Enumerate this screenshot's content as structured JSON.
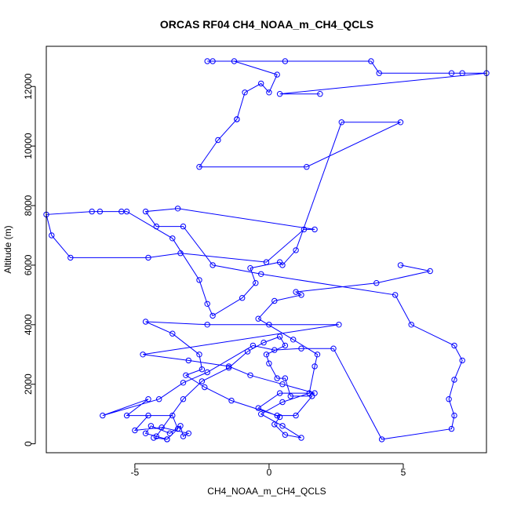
{
  "chart_data": {
    "type": "line",
    "title": "ORCAS RF04 CH4_NOAA_m_CH4_QCLS",
    "xlabel": "CH4_NOAA_m_CH4_QCLS",
    "ylabel": "Altitude (m)",
    "xlim": [
      -8.3,
      8.1
    ],
    "ylim": [
      -300,
      13350
    ],
    "x_ticks": [
      -5,
      0,
      5
    ],
    "x_tick_labels": [
      "-5",
      "0",
      "5"
    ],
    "y_ticks": [
      0,
      2000,
      4000,
      6000,
      8000,
      10000,
      12000
    ],
    "y_tick_labels": [
      "0",
      "2000",
      "4000",
      "6000",
      "8000",
      "10000",
      "12000"
    ],
    "grid": false,
    "marker": "open-circle",
    "color": "#0000ff",
    "series": [
      {
        "x": [
          -4.3,
          -3.8,
          -3.4,
          -3.6,
          -5.3,
          -4.5,
          -6.2,
          -4.1,
          -3.2,
          -2.3,
          -0.6,
          0.2,
          1.2,
          2.4,
          4.2,
          6.8,
          6.9,
          6.7,
          6.9,
          7.2,
          6.9,
          5.3,
          4.7,
          -0.3,
          -2.1,
          -3.2,
          -4.2,
          -4.6,
          -3.4,
          1.7,
          1.3,
          -0.1,
          -3.3,
          -4.5,
          -7.4,
          -8.1,
          -8.3,
          -6.6,
          -6.3,
          -5.5,
          -5.3,
          -3.6,
          -2.6,
          -2.3,
          -2.1,
          -1.0,
          -0.5,
          -0.7,
          0.4,
          0.5,
          1.0,
          2.7,
          4.9,
          1.4,
          -2.6,
          -1.9,
          -1.2,
          -1.2,
          -0.9,
          -0.3,
          0.0,
          0.3,
          -1.3,
          -2.1,
          -2.3,
          0.6,
          3.8,
          4.1,
          6.8,
          7.2,
          8.1,
          0.4,
          1.9
        ],
        "y": [
          200,
          150,
          500,
          950,
          950,
          1500,
          950,
          1500,
          2050,
          2400,
          3300,
          3150,
          3200,
          3200,
          150,
          500,
          950,
          1500,
          2150,
          2800,
          3300,
          4000,
          5000,
          5700,
          6000,
          7300,
          7300,
          7800,
          7900,
          7200,
          7200,
          6100,
          6400,
          6250,
          6250,
          7000,
          7700,
          7800,
          7800,
          7800,
          7800,
          6900,
          5500,
          4700,
          4300,
          4900,
          5400,
          5900,
          6100,
          6000,
          6500,
          10800,
          10800,
          9300,
          9300,
          10200,
          10900,
          10900,
          11800,
          12100,
          11800,
          12400,
          12850,
          12850,
          12850,
          12850,
          12850,
          12450,
          12450,
          12450,
          12450,
          11750,
          11750
        ]
      },
      {
        "x": [
          -4.5,
          -5.0,
          -4.0,
          -3.0,
          -3.2,
          -3.3,
          -3.7,
          -4.4,
          -4.6,
          -3.8,
          -4.2,
          -3.2,
          -2.5,
          -1.5,
          -0.8,
          -0.2,
          0.4,
          0.6,
          -0.1,
          0.0,
          0.3,
          0.6,
          0.8,
          1.6,
          1.0,
          0.3,
          -1.4,
          -2.4,
          -3.1,
          -2.5,
          -2.6,
          -3.6,
          -4.6,
          -2.3,
          0.0,
          2.6,
          -4.7,
          -3.0,
          -1.5,
          -0.7,
          0.5,
          1.7,
          0.4,
          -0.4,
          0.4,
          0.2,
          0.6,
          1.2,
          0.5,
          -0.3,
          0.5,
          1.5,
          1.7,
          1.8,
          0.9,
          -0.4,
          0.2,
          1.2,
          1.0,
          4.0,
          6.0,
          4.9
        ],
        "y": [
          950,
          450,
          550,
          350,
          250,
          600,
          350,
          600,
          350,
          150,
          250,
          1500,
          2100,
          2550,
          3100,
          3400,
          3600,
          3300,
          3000,
          2700,
          2200,
          2200,
          1600,
          1600,
          950,
          950,
          1450,
          1900,
          2300,
          2500,
          3000,
          3700,
          4100,
          4000,
          4000,
          4000,
          3000,
          2800,
          2600,
          2300,
          2000,
          1700,
          1700,
          1200,
          900,
          650,
          300,
          200,
          600,
          1000,
          1400,
          1700,
          2600,
          3000,
          3500,
          4200,
          4800,
          5000,
          5100,
          5400,
          5800,
          6000
        ]
      }
    ]
  }
}
